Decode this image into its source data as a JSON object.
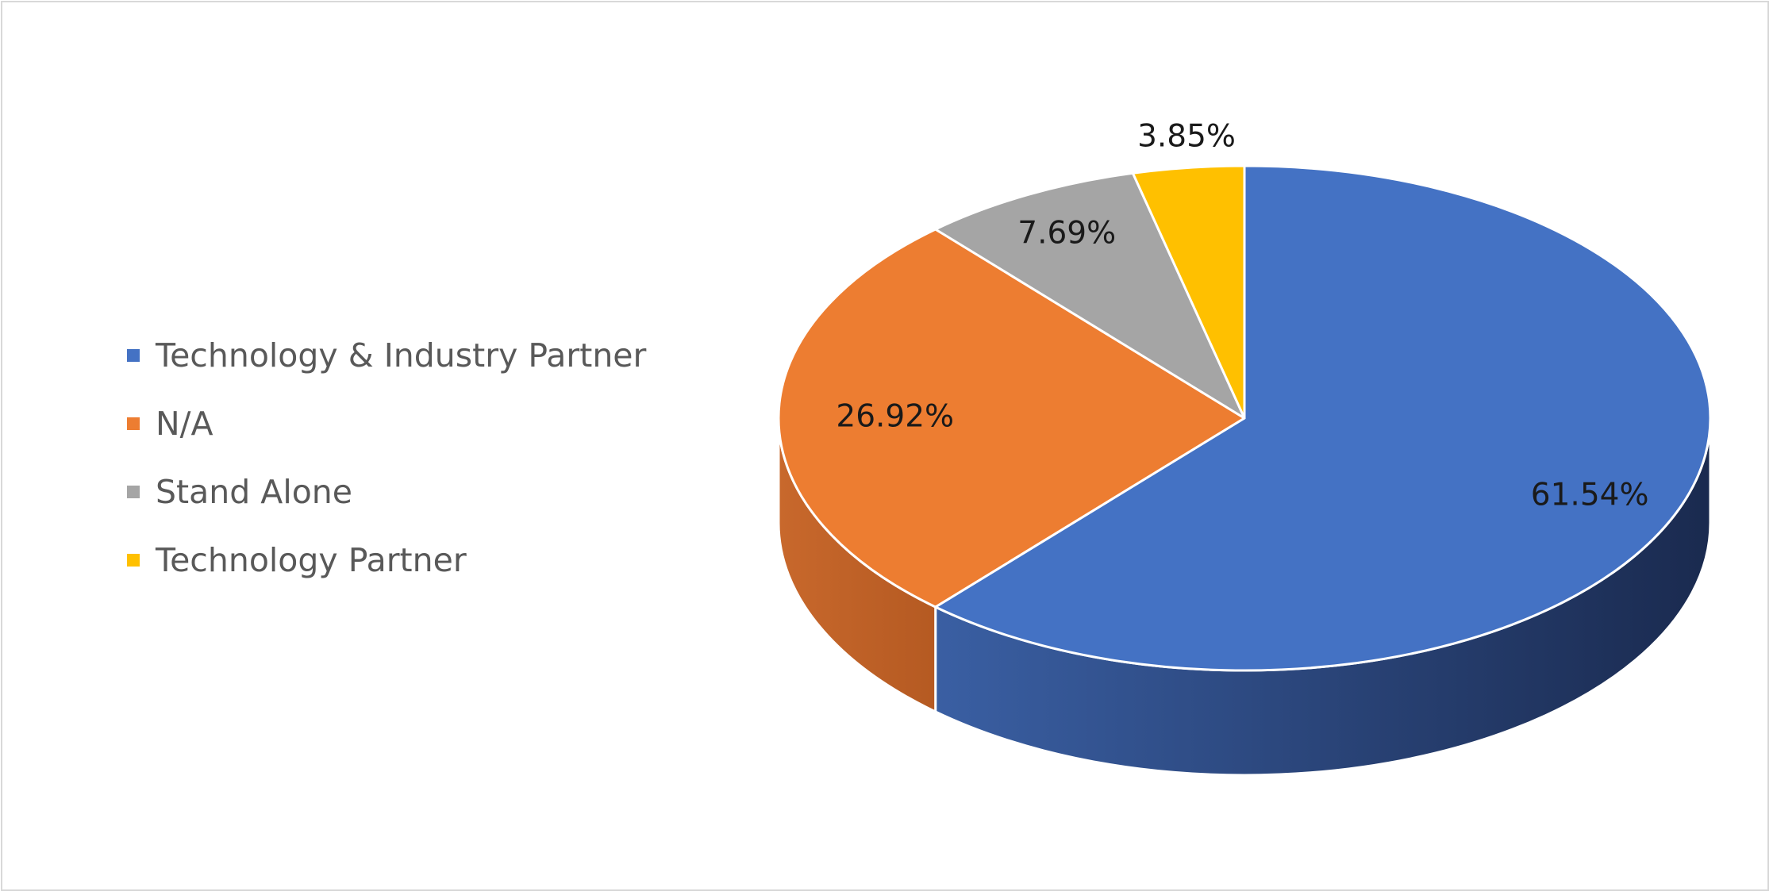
{
  "chart_data": {
    "type": "pie",
    "title": "",
    "three_d": true,
    "legend_position": "left",
    "categories": [
      "Technology & Industry Partner",
      "N/A",
      "Stand Alone",
      "Technology Partner"
    ],
    "values": [
      61.54,
      26.92,
      7.69,
      3.85
    ],
    "data_labels": [
      "61.54%",
      "26.92%",
      "7.69%",
      "3.85%"
    ],
    "colors": [
      "#4472C4",
      "#ED7D31",
      "#A5A5A5",
      "#FFC000"
    ],
    "side_colors": [
      "#2E4A80",
      "#B8602A",
      "#7F7F7F",
      "#C59500"
    ]
  },
  "legend": {
    "items": [
      {
        "label": "Technology & Industry Partner",
        "color": "#4472C4"
      },
      {
        "label": "N/A",
        "color": "#ED7D31"
      },
      {
        "label": "Stand Alone",
        "color": "#A5A5A5"
      },
      {
        "label": "Technology Partner",
        "color": "#FFC000"
      }
    ]
  }
}
